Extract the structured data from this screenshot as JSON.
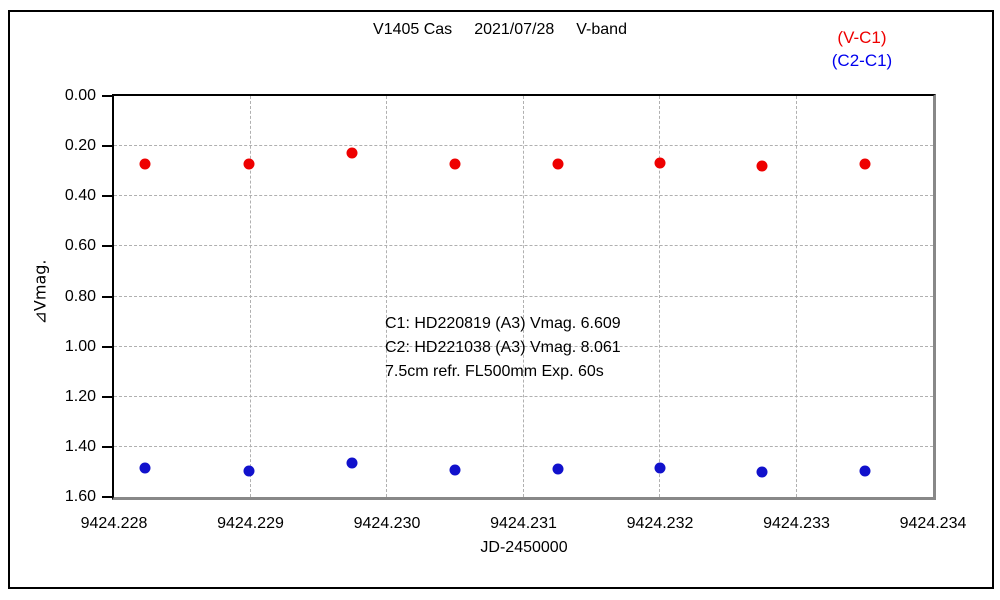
{
  "title": {
    "parts": [
      "V1405 Cas",
      "2021/07/28",
      "V-band"
    ],
    "full": "V1405 Cas  2021/07/28  V-band"
  },
  "legend": {
    "items": [
      {
        "label": "(V-C1)",
        "color": "#ee0000"
      },
      {
        "label": "(C2-C1)",
        "color": "#0000ee"
      }
    ]
  },
  "annotation": {
    "lines": [
      "C1: HD220819 (A3) Vmag. 6.609",
      "C2: HD221038 (A3) Vmag. 8.061",
      "7.5cm refr. FL500mm Exp. 60s"
    ]
  },
  "chart_data": {
    "type": "scatter",
    "title": "V1405 Cas 2021/07/28 V-band",
    "xlabel": "JD-2450000",
    "ylabel": "⊿Vmag.",
    "xlim": [
      9424.228,
      9424.234
    ],
    "ylim": [
      0.0,
      1.6
    ],
    "y_axis_inverted": true,
    "grid": "dashed",
    "legend_position": "top-right",
    "x_tick_labels": [
      "9424.228",
      "9424.229",
      "9424.230",
      "9424.231",
      "9424.232",
      "9424.233",
      "9424.234"
    ],
    "y_tick_labels": [
      "0.00",
      "0.20",
      "0.40",
      "0.60",
      "0.80",
      "1.00",
      "1.20",
      "1.40",
      "1.60"
    ],
    "x": [
      9424.22823,
      9424.22899,
      9424.22974,
      9424.2305,
      9424.23125,
      9424.232,
      9424.23275,
      9424.2335
    ],
    "series": [
      {
        "name": "V-C1",
        "color": "#ee0000",
        "marker": "circle",
        "values": [
          0.273,
          0.271,
          0.227,
          0.271,
          0.271,
          0.267,
          0.279,
          0.271
        ]
      },
      {
        "name": "C2-C1",
        "color": "#1111cc",
        "marker": "circle",
        "values": [
          1.484,
          1.496,
          1.464,
          1.492,
          1.488,
          1.484,
          1.5,
          1.496
        ]
      }
    ],
    "colors": {
      "frame_top_left": "#000000",
      "frame_bottom_right": "#888888",
      "gridline": "#b0b0b0",
      "background": "#ffffff"
    }
  }
}
